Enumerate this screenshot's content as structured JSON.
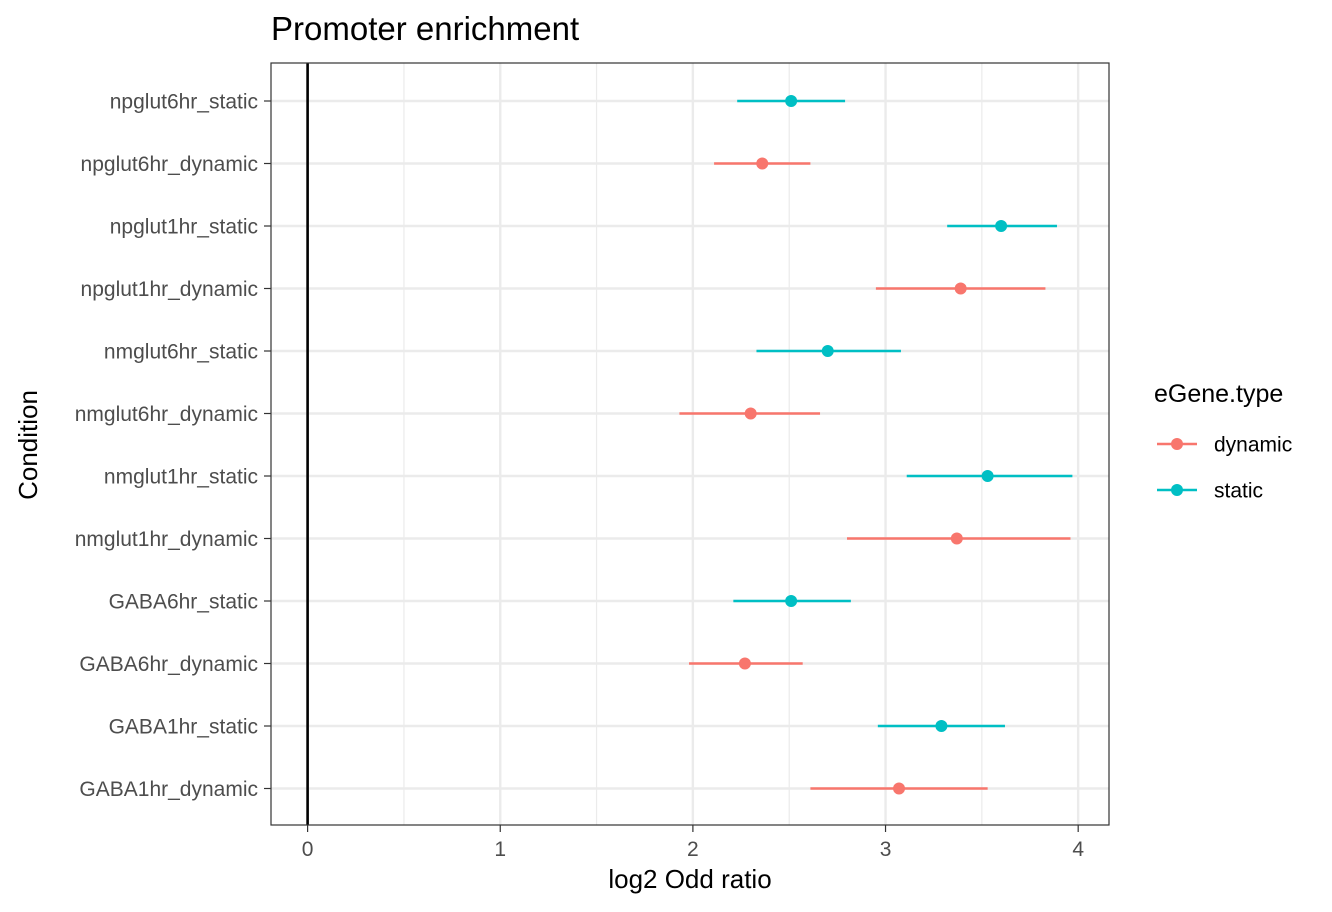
{
  "chart_data": {
    "type": "scatter",
    "title": "Promoter enrichment",
    "xlabel": "log2 Odd ratio",
    "ylabel": "Condition",
    "xlim": [
      -0.19,
      4.16
    ],
    "x_ticks": [
      "0",
      "1",
      "2",
      "3",
      "4"
    ],
    "x_tick_values": [
      0,
      1,
      2,
      3,
      4
    ],
    "reference_line_x": 0,
    "grid": true,
    "legend": {
      "title": "eGene.type",
      "placement": "right",
      "entries": [
        {
          "label": "dynamic",
          "color": "#F8766D"
        },
        {
          "label": "static",
          "color": "#00BFC4"
        }
      ]
    },
    "categories": [
      "npglut6hr_static",
      "npglut6hr_dynamic",
      "npglut1hr_static",
      "npglut1hr_dynamic",
      "nmglut6hr_static",
      "nmglut6hr_dynamic",
      "nmglut1hr_static",
      "nmglut1hr_dynamic",
      "GABA6hr_static",
      "GABA6hr_dynamic",
      "GABA1hr_static",
      "GABA1hr_dynamic"
    ],
    "points": [
      {
        "category": "npglut6hr_static",
        "type": "static",
        "estimate": 2.51,
        "low": 2.23,
        "high": 2.79
      },
      {
        "category": "npglut6hr_dynamic",
        "type": "dynamic",
        "estimate": 2.36,
        "low": 2.11,
        "high": 2.61
      },
      {
        "category": "npglut1hr_static",
        "type": "static",
        "estimate": 3.6,
        "low": 3.32,
        "high": 3.89
      },
      {
        "category": "npglut1hr_dynamic",
        "type": "dynamic",
        "estimate": 3.39,
        "low": 2.95,
        "high": 3.83
      },
      {
        "category": "nmglut6hr_static",
        "type": "static",
        "estimate": 2.7,
        "low": 2.33,
        "high": 3.08
      },
      {
        "category": "nmglut6hr_dynamic",
        "type": "dynamic",
        "estimate": 2.3,
        "low": 1.93,
        "high": 2.66
      },
      {
        "category": "nmglut1hr_static",
        "type": "static",
        "estimate": 3.53,
        "low": 3.11,
        "high": 3.97
      },
      {
        "category": "nmglut1hr_dynamic",
        "type": "dynamic",
        "estimate": 3.37,
        "low": 2.8,
        "high": 3.96
      },
      {
        "category": "GABA6hr_static",
        "type": "static",
        "estimate": 2.51,
        "low": 2.21,
        "high": 2.82
      },
      {
        "category": "GABA6hr_dynamic",
        "type": "dynamic",
        "estimate": 2.27,
        "low": 1.98,
        "high": 2.57
      },
      {
        "category": "GABA1hr_static",
        "type": "static",
        "estimate": 3.29,
        "low": 2.96,
        "high": 3.62
      },
      {
        "category": "GABA1hr_dynamic",
        "type": "dynamic",
        "estimate": 3.07,
        "low": 2.61,
        "high": 3.53
      }
    ]
  }
}
